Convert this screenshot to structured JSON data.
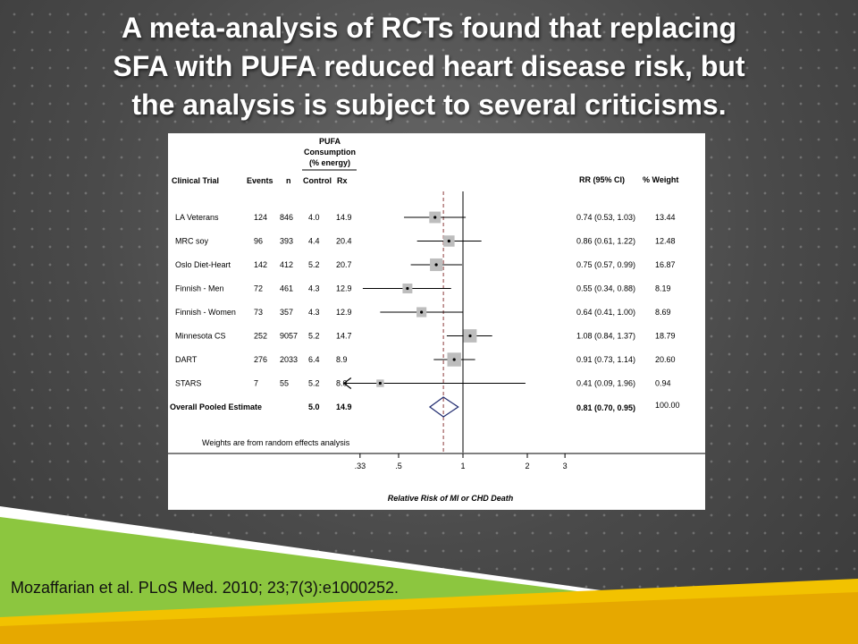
{
  "slide": {
    "title_lines": [
      "A meta-analysis of RCTs found that replacing",
      "SFA with PUFA reduced heart disease risk, but",
      "the analysis is subject to several criticisms."
    ],
    "citation": "Mozaffarian et al. PLoS Med. 2010; 23;7(3):e1000252."
  },
  "colors": {
    "background": "#4a4a4a",
    "green_band": "#8cc63f",
    "yellow_band": "#f2c200",
    "diamond": "#1f2a6e"
  },
  "chart_data": {
    "type": "forest",
    "header": {
      "pufa": "PUFA",
      "consumption": "Consumption",
      "energy": "(% energy)",
      "col_trial": "Clinical Trial",
      "col_events": "Events",
      "col_n": "n",
      "col_control": "Control",
      "col_rx": "Rx",
      "col_rr": "RR  (95% CI)",
      "col_weight": "% Weight"
    },
    "studies": [
      {
        "trial": "LA Veterans",
        "events": "124",
        "n": "846",
        "control": "4.0",
        "rx": "14.9",
        "rr": 0.74,
        "lo": 0.53,
        "hi": 1.03,
        "rr_text": "0.74 (0.53, 1.03)",
        "weight": 13.44,
        "weight_text": "13.44"
      },
      {
        "trial": "MRC soy",
        "events": "96",
        "n": "393",
        "control": "4.4",
        "rx": "20.4",
        "rr": 0.86,
        "lo": 0.61,
        "hi": 1.22,
        "rr_text": "0.86 (0.61, 1.22)",
        "weight": 12.48,
        "weight_text": "12.48"
      },
      {
        "trial": "Oslo Diet-Heart",
        "events": "142",
        "n": "412",
        "control": "5.2",
        "rx": "20.7",
        "rr": 0.75,
        "lo": 0.57,
        "hi": 0.99,
        "rr_text": "0.75 (0.57, 0.99)",
        "weight": 16.87,
        "weight_text": "16.87"
      },
      {
        "trial": "Finnish - Men",
        "events": "72",
        "n": "461",
        "control": "4.3",
        "rx": "12.9",
        "rr": 0.55,
        "lo": 0.34,
        "hi": 0.88,
        "rr_text": "0.55 (0.34, 0.88)",
        "weight": 8.19,
        "weight_text": "8.19"
      },
      {
        "trial": "Finnish - Women",
        "events": "73",
        "n": "357",
        "control": "4.3",
        "rx": "12.9",
        "rr": 0.64,
        "lo": 0.41,
        "hi": 1.0,
        "rr_text": "0.64 (0.41, 1.00)",
        "weight": 8.69,
        "weight_text": "8.69"
      },
      {
        "trial": "Minnesota CS",
        "events": "252",
        "n": "9057",
        "control": "5.2",
        "rx": "14.7",
        "rr": 1.08,
        "lo": 0.84,
        "hi": 1.37,
        "rr_text": "1.08 (0.84, 1.37)",
        "weight": 18.79,
        "weight_text": "18.79"
      },
      {
        "trial": "DART",
        "events": "276",
        "n": "2033",
        "control": "6.4",
        "rx": "8.9",
        "rr": 0.91,
        "lo": 0.73,
        "hi": 1.14,
        "rr_text": "0.91 (0.73, 1.14)",
        "weight": 20.6,
        "weight_text": "20.60"
      },
      {
        "trial": "STARS",
        "events": "7",
        "n": "55",
        "control": "5.2",
        "rx": "8.0",
        "rr": 0.41,
        "lo": 0.09,
        "hi": 1.96,
        "rr_text": "0.41 (0.09, 1.96)",
        "weight": 0.94,
        "weight_text": "0.94",
        "lo_truncated": true
      }
    ],
    "overall": {
      "label": "Overall Pooled Estimate",
      "control": "5.0",
      "rx": "14.9",
      "rr": 0.81,
      "lo": 0.7,
      "hi": 0.95,
      "rr_text": "0.81 (0.70, 0.95)",
      "weight_text": "100.00"
    },
    "note": "Weights are from random effects analysis",
    "x_axis": {
      "scale": "log",
      "ticks": [
        0.33,
        0.5,
        1,
        2,
        3
      ],
      "tick_labels": [
        ".33",
        ".5",
        "1",
        "2",
        "3"
      ],
      "label": "Relative Risk of MI or CHD Death",
      "null_line": 1
    }
  }
}
